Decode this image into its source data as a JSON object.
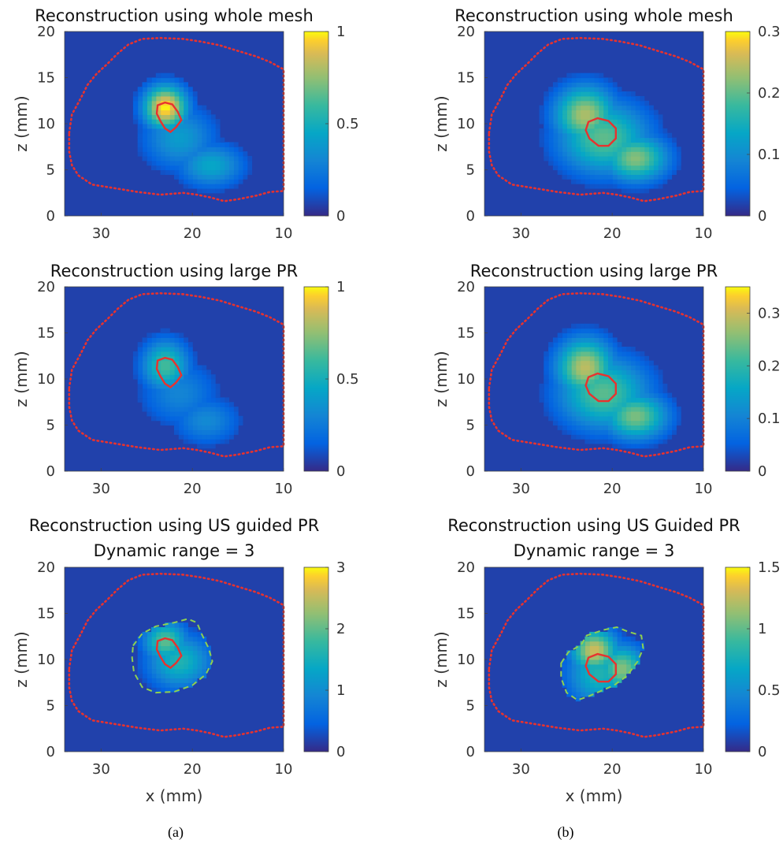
{
  "chart_data": [
    {
      "type": "heatmap",
      "title": "Reconstruction using whole mesh",
      "subtitle": "",
      "xlabel": "",
      "ylabel": "z (mm)",
      "xlim": [
        34,
        10
      ],
      "ylim": [
        0,
        20
      ],
      "xticks": [
        "30",
        "20",
        "10"
      ],
      "yticks": [
        "0",
        "5",
        "10",
        "15",
        "20"
      ],
      "colorbar": {
        "range": [
          0,
          1
        ],
        "ticks": [
          "0",
          "0.5",
          "1"
        ]
      },
      "blobs": [
        {
          "x": 23,
          "z": 11.8,
          "amplitude": 1.0,
          "rx": 2.4,
          "rz": 2.4
        },
        {
          "x": 18,
          "z": 5.5,
          "amplitude": 0.45,
          "rx": 3.6,
          "rz": 2.4
        },
        {
          "x": 21.5,
          "z": 8.5,
          "amplitude": 0.4,
          "rx": 4.0,
          "rz": 3.5
        }
      ]
    },
    {
      "type": "heatmap",
      "title": "Reconstruction using whole mesh",
      "subtitle": "",
      "xlabel": "",
      "ylabel": "z (mm)",
      "xlim": [
        34,
        10
      ],
      "ylim": [
        0,
        20
      ],
      "xticks": [
        "30",
        "20",
        "10"
      ],
      "yticks": [
        "0",
        "5",
        "10",
        "15",
        "20"
      ],
      "colorbar": {
        "range": [
          0,
          0.3
        ],
        "ticks": [
          "0",
          "0.1",
          "0.2",
          "0.3"
        ]
      },
      "blobs": [
        {
          "x": 23,
          "z": 11,
          "amplitude": 0.24,
          "rx": 3.4,
          "rz": 3.2
        },
        {
          "x": 17.5,
          "z": 6.3,
          "amplitude": 0.22,
          "rx": 3.6,
          "rz": 2.6
        },
        {
          "x": 21,
          "z": 8.5,
          "amplitude": 0.2,
          "rx": 5.0,
          "rz": 4.0
        }
      ]
    },
    {
      "type": "heatmap",
      "title": "Reconstruction using large PR",
      "subtitle": "",
      "xlabel": "",
      "ylabel": "z (mm)",
      "xlim": [
        34,
        10
      ],
      "ylim": [
        0,
        20
      ],
      "xticks": [
        "30",
        "20",
        "10"
      ],
      "yticks": [
        "0",
        "5",
        "10",
        "15",
        "20"
      ],
      "colorbar": {
        "range": [
          0,
          1
        ],
        "ticks": [
          "0",
          "0.5",
          "1"
        ]
      },
      "blobs": [
        {
          "x": 23,
          "z": 11.5,
          "amplitude": 0.62,
          "rx": 2.6,
          "rz": 2.8
        },
        {
          "x": 18.5,
          "z": 5.5,
          "amplitude": 0.32,
          "rx": 3.6,
          "rz": 2.6
        },
        {
          "x": 21.5,
          "z": 8.5,
          "amplitude": 0.3,
          "rx": 4.2,
          "rz": 3.6
        }
      ]
    },
    {
      "type": "heatmap",
      "title": "Reconstruction using large PR",
      "subtitle": "",
      "xlabel": "",
      "ylabel": "z (mm)",
      "xlim": [
        34,
        10
      ],
      "ylim": [
        0,
        20
      ],
      "xticks": [
        "30",
        "20",
        "10"
      ],
      "yticks": [
        "0",
        "5",
        "10",
        "15",
        "20"
      ],
      "colorbar": {
        "range": [
          0,
          0.35
        ],
        "ticks": [
          "0",
          "0.1",
          "0.2",
          "0.3"
        ]
      },
      "blobs": [
        {
          "x": 23,
          "z": 11.3,
          "amplitude": 0.29,
          "rx": 3.2,
          "rz": 3.2
        },
        {
          "x": 17.5,
          "z": 6.0,
          "amplitude": 0.25,
          "rx": 3.6,
          "rz": 2.6
        },
        {
          "x": 21,
          "z": 8.5,
          "amplitude": 0.23,
          "rx": 5.0,
          "rz": 4.0
        }
      ]
    },
    {
      "type": "heatmap",
      "title": "Reconstruction using US guided PR",
      "subtitle": "Dynamic range = 3",
      "xlabel": "x (mm)",
      "ylabel": "z (mm)",
      "xlim": [
        34,
        10
      ],
      "ylim": [
        0,
        20
      ],
      "xticks": [
        "30",
        "20",
        "10"
      ],
      "yticks": [
        "0",
        "5",
        "10",
        "15",
        "20"
      ],
      "colorbar": {
        "range": [
          0,
          3
        ],
        "ticks": [
          "0",
          "1",
          "2",
          "3"
        ]
      },
      "blobs": [
        {
          "x": 23,
          "z": 12,
          "amplitude": 2.0,
          "rx": 2.4,
          "rz": 2.2
        },
        {
          "x": 21.5,
          "z": 9.8,
          "amplitude": 1.6,
          "rx": 3.6,
          "rz": 3.0
        }
      ],
      "mask": [
        [
          26.5,
          11.5
        ],
        [
          25.5,
          12.8
        ],
        [
          24,
          13.6
        ],
        [
          22,
          14
        ],
        [
          20.5,
          14.4
        ],
        [
          19.5,
          14
        ],
        [
          19,
          12.8
        ],
        [
          18.2,
          11.2
        ],
        [
          17.8,
          9.8
        ],
        [
          18.5,
          8.4
        ],
        [
          20,
          7.2
        ],
        [
          22,
          6.5
        ],
        [
          24,
          6.4
        ],
        [
          25.5,
          7
        ],
        [
          26.4,
          8.6
        ],
        [
          26.6,
          10.2
        ]
      ]
    },
    {
      "type": "heatmap",
      "title": "Reconstruction using US Guided PR",
      "subtitle": "Dynamic range = 3",
      "xlabel": "x (mm)",
      "ylabel": "z (mm)",
      "xlim": [
        34,
        10
      ],
      "ylim": [
        0,
        20
      ],
      "xticks": [
        "30",
        "20",
        "10"
      ],
      "yticks": [
        "0",
        "5",
        "10",
        "15",
        "20"
      ],
      "colorbar": {
        "range": [
          0,
          1.5
        ],
        "ticks": [
          "0",
          "0.5",
          "1",
          "1.5"
        ]
      },
      "blobs": [
        {
          "x": 22,
          "z": 11,
          "amplitude": 1.3,
          "rx": 2.6,
          "rz": 2.4
        },
        {
          "x": 19,
          "z": 9,
          "amplitude": 1.1,
          "rx": 2.6,
          "rz": 2.6
        },
        {
          "x": 21.5,
          "z": 8.5,
          "amplitude": 0.8,
          "rx": 3.6,
          "rz": 3.6
        }
      ],
      "mask": [
        [
          25.6,
          9.6
        ],
        [
          24.8,
          10.8
        ],
        [
          23.4,
          11.6
        ],
        [
          22.8,
          12.6
        ],
        [
          21,
          13.2
        ],
        [
          19.5,
          13.5
        ],
        [
          18.2,
          13
        ],
        [
          16.8,
          12.6
        ],
        [
          16.6,
          11.2
        ],
        [
          17.2,
          9.8
        ],
        [
          18.4,
          8.2
        ],
        [
          19.8,
          7.2
        ],
        [
          21.2,
          6.6
        ],
        [
          22.6,
          6
        ],
        [
          23.8,
          5.6
        ],
        [
          25,
          6.4
        ],
        [
          25.6,
          8
        ]
      ]
    }
  ],
  "outer_contour": [
    [
      33.5,
      9
    ],
    [
      33.2,
      11
    ],
    [
      32.2,
      12.8
    ],
    [
      31.5,
      14.2
    ],
    [
      30.5,
      15.4
    ],
    [
      29.3,
      16.5
    ],
    [
      28.2,
      17.6
    ],
    [
      27,
      18.6
    ],
    [
      25.5,
      19.2
    ],
    [
      23.5,
      19.3
    ],
    [
      21,
      19.2
    ],
    [
      19,
      18.9
    ],
    [
      17,
      18.5
    ],
    [
      15,
      17.9
    ],
    [
      13,
      17.3
    ],
    [
      11.5,
      16.7
    ],
    [
      10,
      15.9
    ]
  ],
  "outer_contour_bottom": [
    [
      33.5,
      9
    ],
    [
      33.5,
      7
    ],
    [
      33.2,
      5.5
    ],
    [
      32.5,
      4.4
    ],
    [
      31,
      3.4
    ],
    [
      28.5,
      3.0
    ],
    [
      26,
      2.6
    ],
    [
      23.5,
      2.3
    ],
    [
      21,
      2.5
    ],
    [
      19.5,
      2.3
    ],
    [
      18,
      2.0
    ],
    [
      16.5,
      1.6
    ],
    [
      15,
      1.8
    ],
    [
      13,
      2.2
    ],
    [
      11.5,
      2.6
    ],
    [
      10,
      2.7
    ]
  ],
  "tumor_contour_left": [
    [
      23.8,
      12
    ],
    [
      23.0,
      12.3
    ],
    [
      22.2,
      12.1
    ],
    [
      21.6,
      11.3
    ],
    [
      21.2,
      10.4
    ],
    [
      21.8,
      9.6
    ],
    [
      22.4,
      9.1
    ],
    [
      23.0,
      9.5
    ],
    [
      23.5,
      10.3
    ],
    [
      23.9,
      11.1
    ]
  ],
  "tumor_contour_right": [
    [
      22.6,
      10.2
    ],
    [
      21.6,
      10.6
    ],
    [
      20.4,
      10.3
    ],
    [
      19.6,
      9.5
    ],
    [
      19.6,
      8.4
    ],
    [
      20.4,
      7.6
    ],
    [
      21.5,
      7.6
    ],
    [
      22.5,
      8.4
    ],
    [
      22.9,
      9.3
    ]
  ],
  "captions": [
    "(a)",
    "(b)"
  ]
}
